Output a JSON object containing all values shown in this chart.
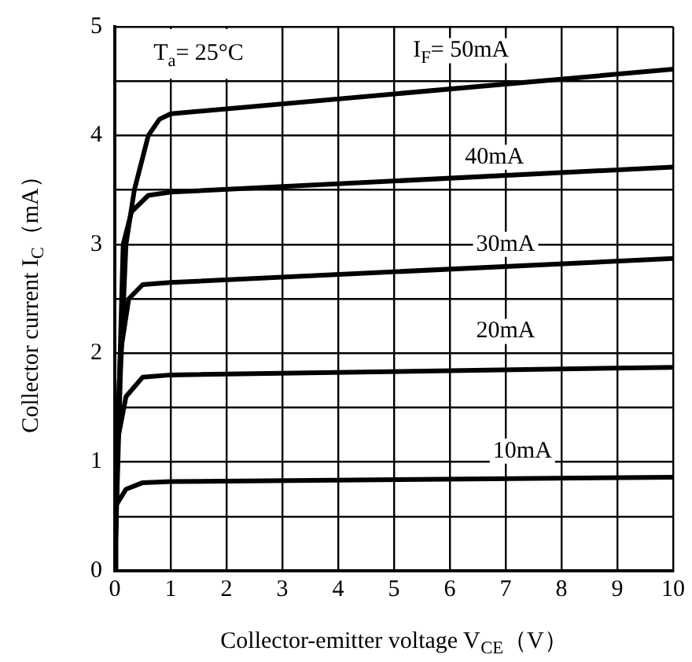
{
  "chart_data": {
    "type": "line",
    "xlabel": "Collector-emitter voltage V$_{CE}$（V）",
    "ylabel": "Collector current I$_{C}$（mA）",
    "xlim": [
      0,
      10
    ],
    "xticks": [
      0,
      1,
      2,
      3,
      4,
      5,
      6,
      7,
      8,
      9,
      10
    ],
    "ylim": [
      0,
      5
    ],
    "yticks": [
      0,
      {
        "value": 0.5,
        "label": null
      },
      1,
      {
        "value": 1.5,
        "label": null
      },
      2,
      {
        "value": 2.5,
        "label": null
      },
      3,
      {
        "value": 3.5,
        "label": null
      },
      4,
      {
        "value": 4.5,
        "label": null
      },
      5
    ],
    "grid": true,
    "legend": false,
    "marker": "none",
    "line_style": "solid",
    "series": [
      {
        "color": "#000000",
        "x": [
          0,
          0.1,
          0.2,
          0.35,
          0.6,
          0.8,
          1,
          10
        ],
        "values": [
          0,
          1.8,
          3.0,
          3.5,
          4.0,
          4.15,
          4.2,
          4.61
        ]
      },
      {
        "color": "#000000",
        "x": [
          0,
          0.08,
          0.15,
          0.3,
          0.6,
          1,
          10
        ],
        "values": [
          0,
          1.7,
          3.0,
          3.3,
          3.45,
          3.48,
          3.71
        ]
      },
      {
        "color": "#000000",
        "x": [
          0,
          0.05,
          0.1,
          0.25,
          0.5,
          1,
          10
        ],
        "values": [
          0,
          1.3,
          2.0,
          2.5,
          2.63,
          2.65,
          2.87
        ]
      },
      {
        "color": "#000000",
        "x": [
          0,
          0.05,
          0.2,
          0.5,
          1,
          10
        ],
        "values": [
          0,
          1.2,
          1.6,
          1.78,
          1.8,
          1.87
        ]
      },
      {
        "color": "#000000",
        "x": [
          0,
          0.02,
          0.2,
          0.5,
          1,
          10
        ],
        "values": [
          0,
          0.6,
          0.75,
          0.81,
          0.82,
          0.86
        ]
      }
    ],
    "annotations": [
      "T$_{a}$= 25°C",
      "I$_{F}$= 50mA",
      {
        "text": "40mA",
        "x": 6.8,
        "y": 3.8
      },
      {
        "text": "30mA",
        "x": 7.0,
        "y": 3.0
      },
      {
        "text": "20mA",
        "x": 7.0,
        "y": 2.2
      },
      {
        "text": "10mA",
        "x": 7.3,
        "y": 1.1
      }
    ]
  }
}
